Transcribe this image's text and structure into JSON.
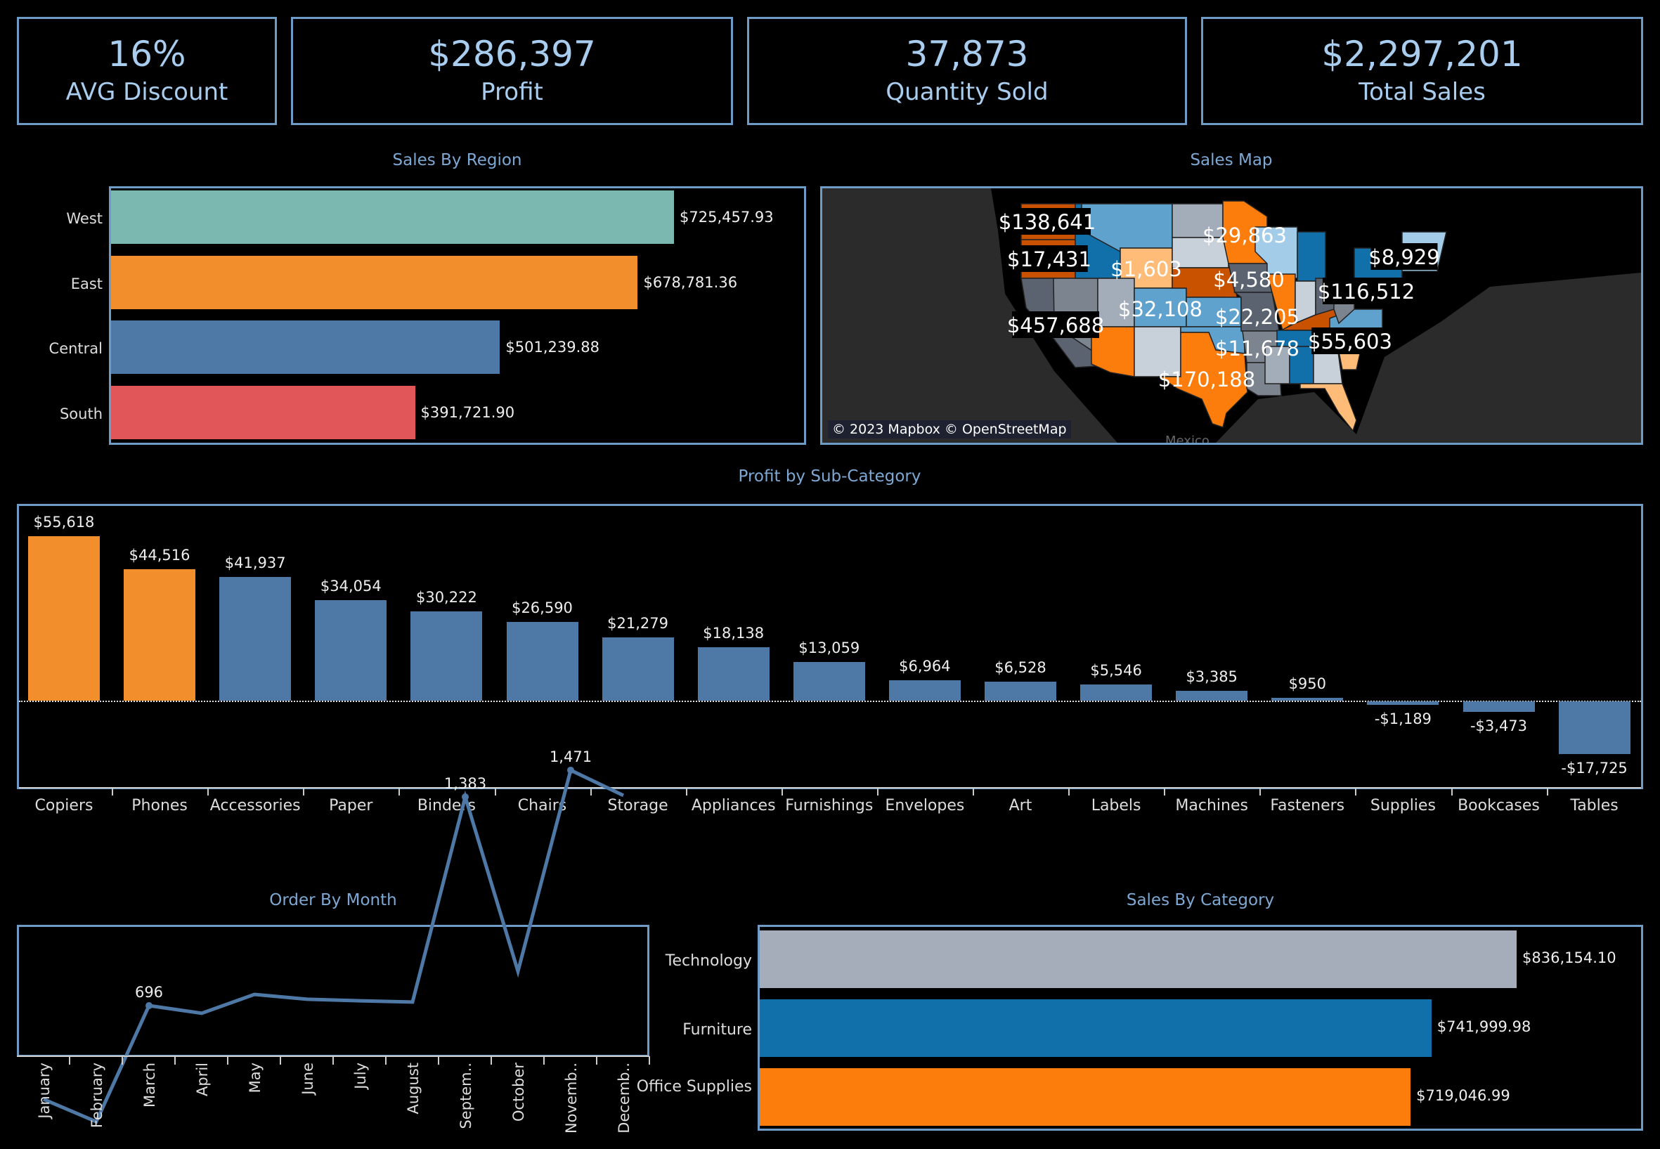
{
  "kpis": [
    {
      "value": "16%",
      "label": "AVG Discount"
    },
    {
      "value": "$286,397",
      "label": "Profit"
    },
    {
      "value": "37,873",
      "label": "Quantity Sold"
    },
    {
      "value": "$2,297,201",
      "label": "Total Sales"
    }
  ],
  "region": {
    "title": "Sales By Region",
    "items": [
      {
        "name": "West",
        "value": 725457.93,
        "label": "$725,457.93",
        "color": "#7ab8b0"
      },
      {
        "name": "East",
        "value": 678781.36,
        "label": "$678,781.36",
        "color": "#f28e2b"
      },
      {
        "name": "Central",
        "value": 501239.88,
        "label": "$501,239.88",
        "color": "#4e79a7"
      },
      {
        "name": "South",
        "value": 391721.9,
        "label": "$391,721.90",
        "color": "#e15759"
      }
    ]
  },
  "map": {
    "title": "Sales Map",
    "attribution": "© 2023 Mapbox © OpenStreetMap",
    "country_label": "Mexico",
    "labels": [
      "$138,641",
      "$17,431",
      "$1,603",
      "$29,863",
      "$4,580",
      "$8,929",
      "$116,512",
      "$32,108",
      "$22,205",
      "$457,688",
      "$11,678",
      "$55,603",
      "$170,188"
    ]
  },
  "subcat": {
    "title": "Profit by Sub-Category",
    "highlight": "#f28e2b",
    "base": "#4e79a7",
    "items": [
      {
        "name": "Copiers",
        "value": 55618,
        "label": "$55,618",
        "highlight": true
      },
      {
        "name": "Phones",
        "value": 44516,
        "label": "$44,516",
        "highlight": true
      },
      {
        "name": "Accessories",
        "value": 41937,
        "label": "$41,937"
      },
      {
        "name": "Paper",
        "value": 34054,
        "label": "$34,054"
      },
      {
        "name": "Binders",
        "value": 30222,
        "label": "$30,222"
      },
      {
        "name": "Chairs",
        "value": 26590,
        "label": "$26,590"
      },
      {
        "name": "Storage",
        "value": 21279,
        "label": "$21,279"
      },
      {
        "name": "Appliances",
        "value": 18138,
        "label": "$18,138"
      },
      {
        "name": "Furnishings",
        "value": 13059,
        "label": "$13,059"
      },
      {
        "name": "Envelopes",
        "value": 6964,
        "label": "$6,964"
      },
      {
        "name": "Art",
        "value": 6528,
        "label": "$6,528"
      },
      {
        "name": "Labels",
        "value": 5546,
        "label": "$5,546"
      },
      {
        "name": "Machines",
        "value": 3385,
        "label": "$3,385"
      },
      {
        "name": "Fasteners",
        "value": 950,
        "label": "$950"
      },
      {
        "name": "Supplies",
        "value": -1189,
        "label": "-$1,189"
      },
      {
        "name": "Bookcases",
        "value": -3473,
        "label": "-$3,473"
      },
      {
        "name": "Tables",
        "value": -17725,
        "label": "-$17,725"
      }
    ]
  },
  "chart_data": [
    {
      "type": "line",
      "title": "Order By Month",
      "color": "#4e79a7",
      "categories": [
        "January",
        "February",
        "March",
        "April",
        "May",
        "June",
        "July",
        "August",
        "Septem..",
        "October",
        "Novemb..",
        "Decemb.."
      ],
      "values": [
        388,
        314,
        696,
        671,
        733,
        717,
        712,
        708,
        1383,
        809,
        1471,
        1388
      ],
      "data_labels": {
        "2": "696",
        "8": "1,383",
        "10": "1,471"
      }
    },
    {
      "type": "bar",
      "title": "Sales By Category",
      "categories": [
        "Technology",
        "Furniture",
        "Office Supplies"
      ],
      "values": [
        836154.1,
        741999.98,
        719046.99
      ],
      "labels": [
        "$836,154.10",
        "$741,999.98",
        "$719,046.99"
      ],
      "colors": [
        "#a5adba",
        "#1170aa",
        "#fc7d0b"
      ]
    }
  ]
}
